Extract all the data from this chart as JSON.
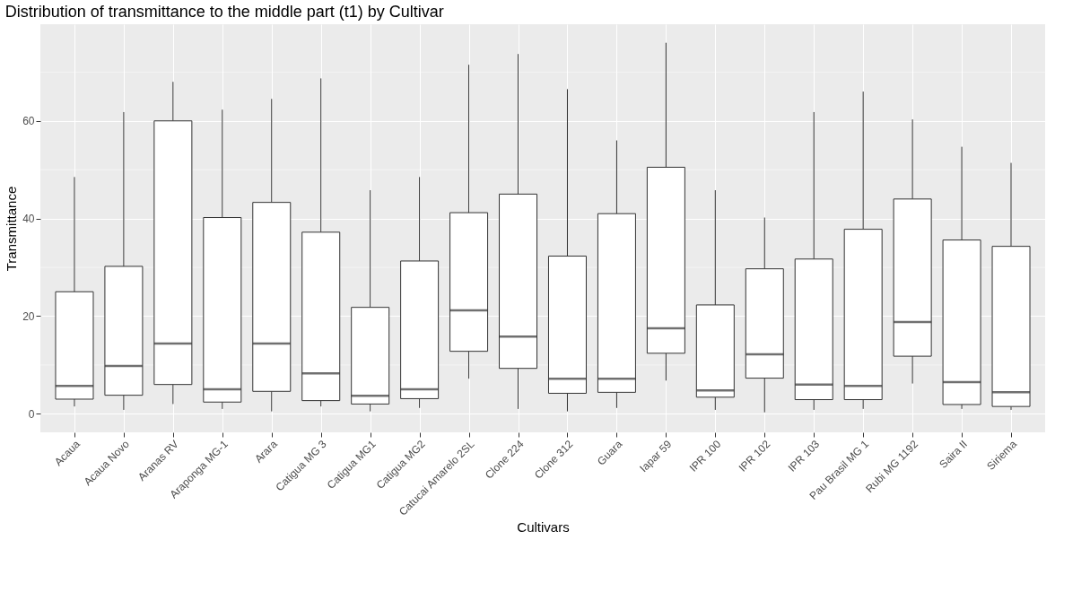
{
  "chart_data": {
    "type": "box",
    "title": "Distribution of transmittance to the middle part (t1) by Cultivar",
    "xlabel": "Cultivars",
    "ylabel": "Transmittance",
    "categories": [
      "Acaua",
      "Acaua Novo",
      "Aranas RV",
      "Araponga MG-1",
      "Arara",
      "Catigua MG 3",
      "Catigua MG1",
      "Catigua MG2",
      "Catucai Amarelo 2SL",
      "Clone 224",
      "Clone 312",
      "Guara",
      "Iapar 59",
      "IPR 100",
      "IPR 102",
      "IPR 103",
      "Pau Brasil MG 1",
      "Rubi MG 1192",
      "Saira II",
      "Siriema"
    ],
    "boxes": [
      {
        "low": 1.5,
        "q1": 3,
        "median": 5.7,
        "q3": 25,
        "high": 48.5
      },
      {
        "low": 0.8,
        "q1": 3.8,
        "median": 9.8,
        "q3": 30.2,
        "high": 61.8
      },
      {
        "low": 2,
        "q1": 6,
        "median": 14.4,
        "q3": 60,
        "high": 68
      },
      {
        "low": 1,
        "q1": 2.4,
        "median": 5,
        "q3": 40.2,
        "high": 62.3
      },
      {
        "low": 0.5,
        "q1": 4.6,
        "median": 14.4,
        "q3": 43.3,
        "high": 64.5
      },
      {
        "low": 1.5,
        "q1": 2.7,
        "median": 8.3,
        "q3": 37.2,
        "high": 68.7
      },
      {
        "low": 0.5,
        "q1": 2,
        "median": 3.7,
        "q3": 21.8,
        "high": 45.8
      },
      {
        "low": 1.2,
        "q1": 3.1,
        "median": 5,
        "q3": 31.3,
        "high": 48.5
      },
      {
        "low": 7.2,
        "q1": 12.8,
        "median": 21.2,
        "q3": 41.2,
        "high": 71.5
      },
      {
        "low": 1,
        "q1": 9.3,
        "median": 15.8,
        "q3": 45,
        "high": 73.7
      },
      {
        "low": 0.5,
        "q1": 4.2,
        "median": 7.2,
        "q3": 32.3,
        "high": 66.5
      },
      {
        "low": 1.2,
        "q1": 4.4,
        "median": 7.2,
        "q3": 41,
        "high": 56
      },
      {
        "low": 6.8,
        "q1": 12.4,
        "median": 17.5,
        "q3": 50.5,
        "high": 76
      },
      {
        "low": 0.8,
        "q1": 3.4,
        "median": 4.8,
        "q3": 22.3,
        "high": 45.8
      },
      {
        "low": 0.3,
        "q1": 7.3,
        "median": 12.2,
        "q3": 29.7,
        "high": 40.2
      },
      {
        "low": 0.8,
        "q1": 2.9,
        "median": 6,
        "q3": 31.7,
        "high": 61.8
      },
      {
        "low": 1,
        "q1": 2.9,
        "median": 5.7,
        "q3": 37.8,
        "high": 66
      },
      {
        "low": 6.2,
        "q1": 11.8,
        "median": 18.8,
        "q3": 44,
        "high": 60.3
      },
      {
        "low": 1,
        "q1": 1.9,
        "median": 6.5,
        "q3": 35.6,
        "high": 54.7
      },
      {
        "low": 0.8,
        "q1": 1.5,
        "median": 4.4,
        "q3": 34.3,
        "high": 51.4
      }
    ],
    "ylim": [
      -3.8,
      79.8
    ],
    "yticks": [
      0,
      20,
      40,
      60
    ],
    "grid": true
  }
}
